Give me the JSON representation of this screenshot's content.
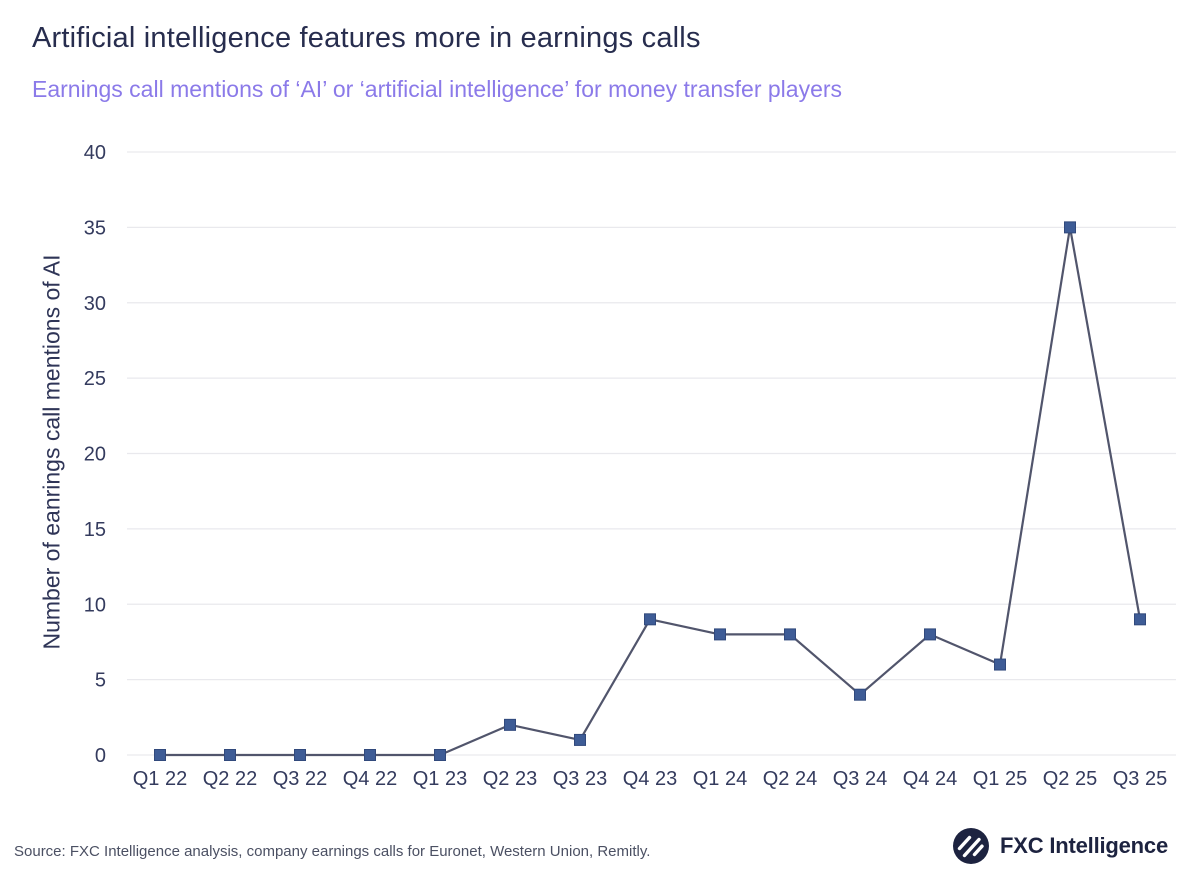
{
  "header": {
    "title": "Artificial intelligence features more in earnings calls",
    "subtitle": "Earnings call mentions of ‘AI’ or ‘artificial intelligence’ for money transfer players"
  },
  "chart_data": {
    "type": "line",
    "categories": [
      "Q1 22",
      "Q2 22",
      "Q3 22",
      "Q4 22",
      "Q1 23",
      "Q2 23",
      "Q3 23",
      "Q4 23",
      "Q1 24",
      "Q2 24",
      "Q3 24",
      "Q4 24",
      "Q1 25",
      "Q2 25",
      "Q3 25"
    ],
    "values": [
      0,
      0,
      0,
      0,
      0,
      2,
      1,
      9,
      8,
      8,
      4,
      8,
      6,
      35,
      9
    ],
    "title": "",
    "xlabel": "",
    "ylabel": "Number of eanrings call mentions of AI",
    "ylim": [
      0,
      40
    ],
    "yticks": [
      0,
      5,
      10,
      15,
      20,
      25,
      30,
      35,
      40
    ],
    "grid": "horizontal",
    "legend": "none",
    "marker": "square"
  },
  "footer": {
    "source": "Source: FXC Intelligence analysis, company earnings calls for Euronet, Western Union, Remitly.",
    "logo_text": "FXC Intelligence"
  },
  "icons": {
    "logo_mark": "fxc-globe-icon"
  },
  "colors": {
    "title_text": "#272d4e",
    "subtitle_text": "#8b7ae9",
    "axis_text": "#343b5e",
    "gridline": "#e9e9ed",
    "line": "#51556c",
    "marker_fill": "#3e5c96",
    "marker_stroke": "#31497c",
    "source_text": "#4b5063",
    "logo_navy": "#1d2340"
  }
}
